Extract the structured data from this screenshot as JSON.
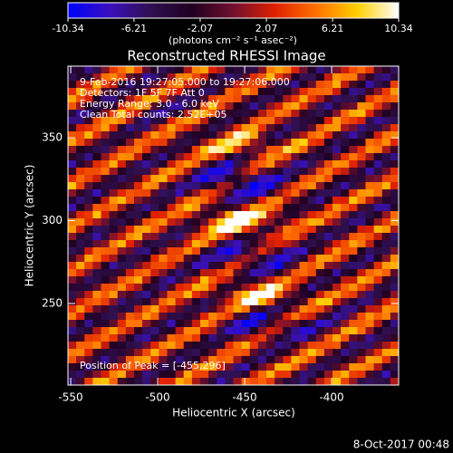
{
  "chart_data": {
    "type": "heatmap",
    "title": "Reconstructed RHESSI Image",
    "x_label": "Heliocentric X (arcsec)",
    "y_label": "Heliocentric Y (arcsec)",
    "xlim": [
      -551.6,
      -361.5
    ],
    "xticks": [
      -550,
      -500,
      -450,
      -400
    ],
    "ylim": [
      200.8,
      393.2
    ],
    "yticks": [
      250,
      300,
      350
    ],
    "colorbar": {
      "lim": [
        -10.34,
        10.34
      ],
      "ticks": [
        -10.34,
        -6.21,
        -2.07,
        2.07,
        6.21,
        10.34
      ],
      "label": "(photons cm⁻² s⁻¹ asec⁻²)",
      "colormap": [
        "#0000ff",
        "#3a10c0",
        "#301050",
        "#200020",
        "#701030",
        "#e02000",
        "#ff7000",
        "#ffd000",
        "#ffffff"
      ]
    },
    "annotations": [
      "9-Feb-2016 19:27:05.000 to 19:27:06.000",
      "Detectors: 1F 5F 7F  Att 0",
      "Energy Range: 3.0 - 6.0 keV",
      "Clean     Total counts: 2.52E+05"
    ],
    "peak_label": "Position of Peak = [-455,296]",
    "footer": "8-Oct-2017 00:48"
  }
}
